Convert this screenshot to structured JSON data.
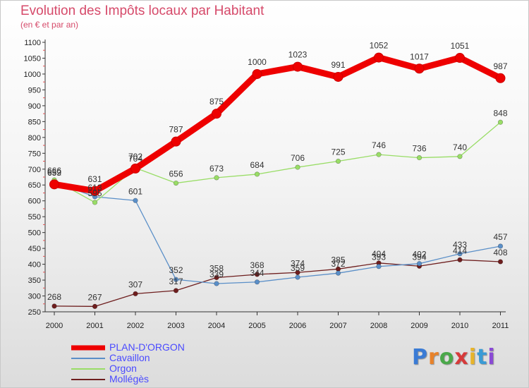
{
  "title": "Evolution des Impôts locaux par Habitant",
  "subtitle": "(en € et par an)",
  "logo": {
    "letters": [
      "P",
      "r",
      "o",
      "x",
      "i",
      "t",
      "i"
    ]
  },
  "chart_data": {
    "type": "line",
    "x": [
      "2000",
      "2001",
      "2002",
      "2003",
      "2004",
      "2005",
      "2006",
      "2007",
      "2008",
      "2009",
      "2010",
      "2011"
    ],
    "ylim": [
      250,
      1100
    ],
    "yticks": [
      250,
      300,
      350,
      400,
      450,
      500,
      550,
      600,
      650,
      700,
      750,
      800,
      850,
      900,
      950,
      1000,
      1050,
      1100
    ],
    "grid": false,
    "legend_position": "bottom-left",
    "series": [
      {
        "name": "Mollégès",
        "color": "#6e1e1e",
        "values": [
          268,
          267,
          307,
          317,
          358,
          368,
          374,
          385,
          404,
          394,
          414,
          408
        ],
        "labels": [
          "268",
          "267",
          "307",
          "317",
          "358",
          "368",
          "374",
          "385",
          "404",
          "394",
          "414",
          "408"
        ]
      },
      {
        "name": "Cavaillon",
        "color": "#5a8fc8",
        "values": [
          659,
          613,
          601,
          352,
          339,
          344,
          359,
          372,
          393,
          402,
          433,
          457
        ],
        "labels": [
          "659",
          "613",
          "601",
          "352",
          "339",
          "344",
          "359",
          "372",
          "393",
          "402",
          "433",
          "457"
        ]
      },
      {
        "name": "Orgon",
        "color": "#99dd66",
        "values": [
          666,
          595,
          704,
          656,
          673,
          684,
          706,
          725,
          746,
          736,
          740,
          848
        ],
        "labels": [
          "666",
          "595",
          "704",
          "656",
          "673",
          "684",
          "706",
          "725",
          "746",
          "736",
          "740",
          "848"
        ]
      },
      {
        "name": "PLAN-D'ORGON",
        "color": "#ee0000",
        "values": [
          652,
          631,
          702,
          787,
          875,
          1000,
          1023,
          991,
          1052,
          1017,
          1051,
          987
        ],
        "labels": [
          "652",
          "631",
          "702",
          "787",
          "875",
          "1000",
          "1023",
          "991",
          "1052",
          "1017",
          "1051",
          "987"
        ]
      }
    ],
    "legend": [
      "PLAN-D'ORGON",
      "Cavaillon",
      "Orgon",
      "Mollégès"
    ]
  }
}
